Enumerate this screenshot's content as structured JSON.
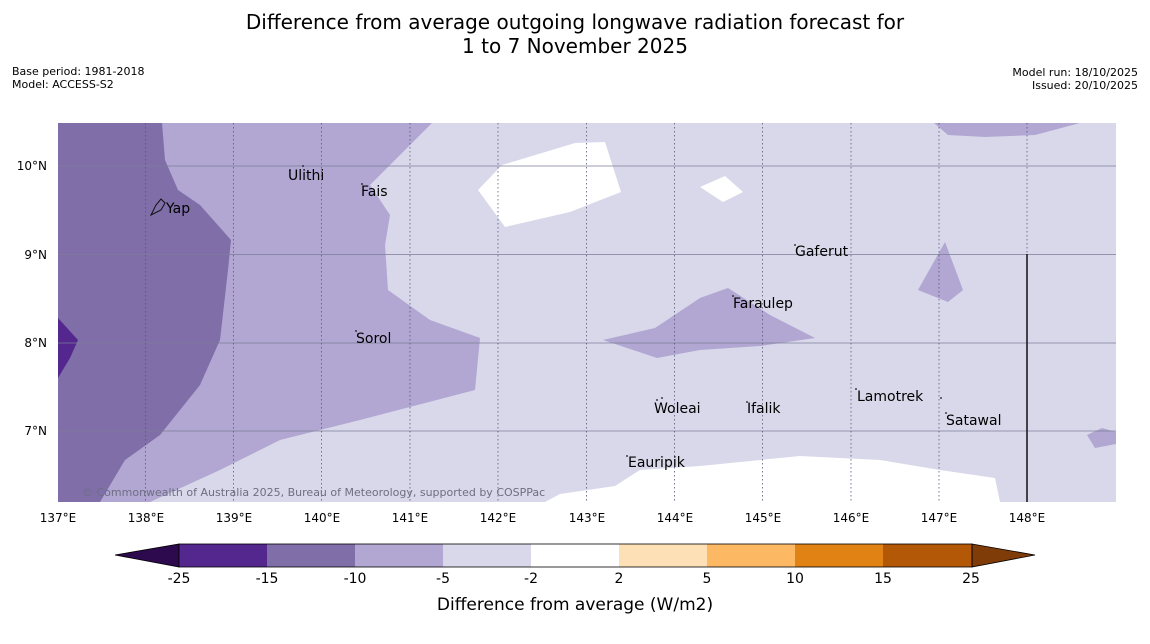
{
  "title_line1": "Difference from average outgoing longwave radiation forecast for",
  "title_line2": "1 to 7 November 2025",
  "base_period": "Base period: 1981-2018",
  "model": "Model: ACCESS-S2",
  "model_run": "Model run: 18/10/2025",
  "issued": "Issued: 20/10/2025",
  "copyright": "© Commonwealth of Australia 2025, Bureau of Meteorology, supported by COSPPac",
  "lat_labels": [
    "10°N",
    "9°N",
    "8°N",
    "7°N"
  ],
  "lon_labels": [
    "137°E",
    "138°E",
    "139°E",
    "140°E",
    "141°E",
    "142°E",
    "143°E",
    "144°E",
    "145°E",
    "146°E",
    "147°E",
    "148°E"
  ],
  "places": [
    "Ulithi",
    "Fais",
    "Yap",
    "Gaferut",
    "Faraulep",
    "Sorol",
    "Lamotrek",
    "Woleai",
    "Ifalik",
    "Satawal",
    "Eauripik"
  ],
  "colorbar": {
    "ticks": [
      "-25",
      "-15",
      "-10",
      "-5",
      "-2",
      "2",
      "5",
      "10",
      "15",
      "25"
    ],
    "colors": [
      "#2d0a4e",
      "#54278f",
      "#7f6ea8",
      "#b1a7d2",
      "#d8d8ea",
      "#ffffff",
      "#fee0b6",
      "#fdb863",
      "#e08214",
      "#b35806",
      "#7f3b08"
    ],
    "label": "Difference from average (W/m2)"
  }
}
